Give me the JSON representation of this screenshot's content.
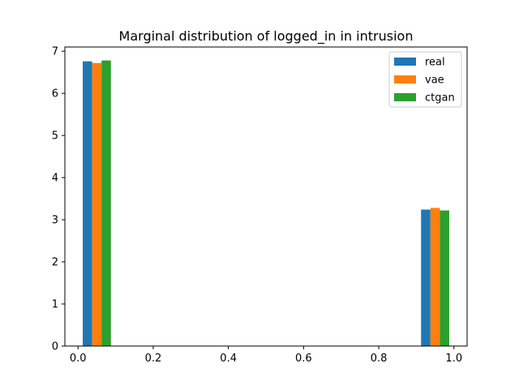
{
  "chart_data": {
    "type": "bar",
    "title": "Marginal distribution of logged_in in intrusion",
    "xlabel": "",
    "ylabel": "",
    "xlim": [
      -0.035,
      1.035
    ],
    "ylim": [
      0,
      7.1
    ],
    "xticks": [
      0.0,
      0.2,
      0.4,
      0.6,
      0.8,
      1.0
    ],
    "xtick_labels": [
      "0.0",
      "0.2",
      "0.4",
      "0.6",
      "0.8",
      "1.0"
    ],
    "yticks": [
      0,
      1,
      2,
      3,
      4,
      5,
      6,
      7
    ],
    "ytick_labels": [
      "0",
      "1",
      "2",
      "3",
      "4",
      "5",
      "6",
      "7"
    ],
    "bin_centers": [
      0.05,
      0.95
    ],
    "bar_width": 0.025,
    "legend_position": "top-right",
    "series": [
      {
        "name": "real",
        "color": "#1f77b4",
        "offset": -0.025,
        "values": [
          6.76,
          3.24
        ]
      },
      {
        "name": "vae",
        "color": "#ff7f0e",
        "offset": 0.0,
        "values": [
          6.72,
          3.28
        ]
      },
      {
        "name": "ctgan",
        "color": "#2ca02c",
        "offset": 0.025,
        "values": [
          6.78,
          3.22
        ]
      }
    ],
    "grid": false
  }
}
